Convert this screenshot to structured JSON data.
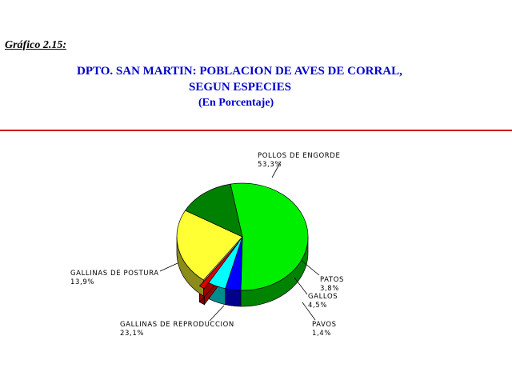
{
  "figure_label": "Gráfico 2.15:",
  "title_line1": "DPTO. SAN MARTIN: POBLACION DE AVES DE CORRAL,",
  "title_line2": "SEGUN ESPECIES",
  "subtitle": "(En Porcentaje)",
  "colors": {
    "title": "#0000cc",
    "rule": "#d40000"
  },
  "chart_data": {
    "type": "pie",
    "title": "DPTO. SAN MARTIN: POBLACION DE AVES DE CORRAL, SEGUN ESPECIES",
    "subtitle": "(En Porcentaje)",
    "unit": "%",
    "slices": [
      {
        "label": "POLLOS DE ENGORDE",
        "value": 53.3,
        "value_text": "53,3%",
        "color": "#00ee00"
      },
      {
        "label": "PATOS",
        "value": 3.8,
        "value_text": "3,8%",
        "color": "#0000ff"
      },
      {
        "label": "GALLOS",
        "value": 4.5,
        "value_text": "4,5%",
        "color": "#00ffff"
      },
      {
        "label": "PAVOS",
        "value": 1.4,
        "value_text": "1,4%",
        "color": "#dd0000",
        "exploded": true
      },
      {
        "label": "GALLINAS DE REPRODUCCION",
        "value": 23.1,
        "value_text": "23,1%",
        "color": "#ffff33"
      },
      {
        "label": "GALLINAS DE POSTURA",
        "value": 13.9,
        "value_text": "13,9%",
        "color": "#008000"
      }
    ]
  }
}
